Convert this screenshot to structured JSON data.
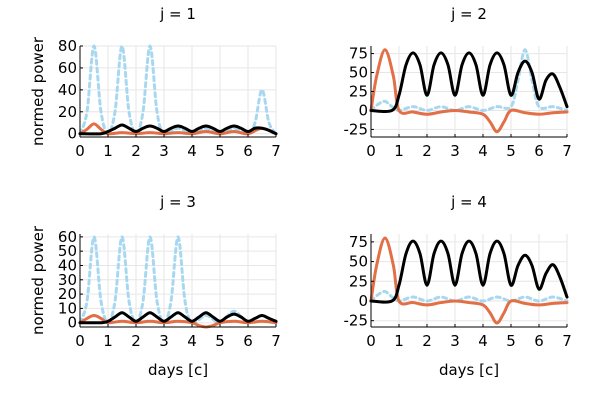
{
  "colors": {
    "dotted": "#a8d8f0",
    "orange": "#e26f46",
    "black": "#000000"
  },
  "chart_data": [
    {
      "type": "line",
      "title": "j = 1",
      "xlabel": "",
      "ylabel": "normed power",
      "xlim": [
        0,
        7
      ],
      "ylim": [
        -3,
        80
      ],
      "xticks": [
        0,
        1,
        2,
        3,
        4,
        5,
        6,
        7
      ],
      "yticks": [
        0,
        20,
        40,
        60,
        80
      ],
      "series": [
        {
          "name": "dotted",
          "style": "dotted",
          "x": [
            0,
            0.25,
            0.5,
            0.75,
            1,
            1.25,
            1.5,
            1.75,
            2,
            2.25,
            2.5,
            2.75,
            3,
            3.5,
            4,
            4.5,
            5,
            5.5,
            6,
            6.25,
            6.5,
            6.75,
            7
          ],
          "y": [
            0,
            20,
            80,
            20,
            0,
            20,
            80,
            20,
            0,
            20,
            80,
            20,
            0,
            5,
            0,
            5,
            0,
            5,
            0,
            10,
            40,
            10,
            0
          ]
        },
        {
          "name": "orange",
          "style": "solid",
          "x": [
            0,
            0.25,
            0.5,
            0.75,
            1,
            1.5,
            2,
            2.5,
            3,
            3.5,
            4,
            4.5,
            5,
            5.5,
            6,
            6.5,
            7
          ],
          "y": [
            0,
            4,
            9,
            4,
            0,
            1,
            0,
            1,
            0,
            1,
            0,
            2,
            0,
            2,
            0,
            5,
            0
          ]
        },
        {
          "name": "black",
          "style": "solid",
          "x": [
            0,
            0.75,
            1,
            1.25,
            1.5,
            1.75,
            2,
            2.25,
            2.5,
            2.75,
            3,
            3.25,
            3.5,
            3.75,
            4,
            4.25,
            4.5,
            4.75,
            5,
            5.25,
            5.5,
            5.75,
            6,
            6.25,
            6.5,
            6.75,
            7
          ],
          "y": [
            0,
            0,
            2,
            5,
            8,
            5,
            2,
            5,
            7,
            5,
            2,
            5,
            7,
            5,
            2,
            5,
            7,
            5,
            2,
            5,
            7,
            5,
            2,
            5,
            5,
            3,
            0
          ]
        }
      ]
    },
    {
      "type": "line",
      "title": "j = 2",
      "xlabel": "",
      "ylabel": "",
      "xlim": [
        0,
        7
      ],
      "ylim": [
        -35,
        85
      ],
      "xticks": [
        0,
        1,
        2,
        3,
        4,
        5,
        6,
        7
      ],
      "yticks": [
        -25,
        0,
        25,
        50,
        75
      ],
      "series": [
        {
          "name": "dotted",
          "style": "dotted",
          "x": [
            0,
            0.25,
            0.5,
            0.75,
            1,
            1.5,
            2,
            2.5,
            3,
            3.5,
            4,
            4.5,
            5,
            5.25,
            5.5,
            5.75,
            6,
            6.5,
            7
          ],
          "y": [
            0,
            8,
            12,
            5,
            0,
            5,
            0,
            5,
            0,
            5,
            0,
            5,
            5,
            40,
            80,
            40,
            5,
            5,
            0
          ]
        },
        {
          "name": "orange",
          "style": "solid",
          "x": [
            0,
            0.2,
            0.5,
            0.8,
            1,
            1.5,
            2,
            2.5,
            3,
            3.5,
            4,
            4.25,
            4.5,
            4.75,
            5,
            5.5,
            6,
            6.5,
            7
          ],
          "y": [
            0,
            45,
            80,
            45,
            0,
            -2,
            -5,
            -2,
            0,
            -2,
            -5,
            -15,
            -28,
            -15,
            0,
            -3,
            -5,
            -3,
            -2
          ]
        },
        {
          "name": "black",
          "style": "solid",
          "x": [
            0,
            0.75,
            1,
            1.25,
            1.5,
            1.75,
            2,
            2.25,
            2.5,
            2.75,
            3,
            3.25,
            3.5,
            3.75,
            4,
            4.25,
            4.5,
            4.75,
            5,
            5.25,
            5.5,
            5.75,
            6,
            6.25,
            6.5,
            6.75,
            7
          ],
          "y": [
            0,
            0,
            20,
            60,
            76,
            60,
            20,
            60,
            76,
            60,
            20,
            60,
            76,
            60,
            20,
            60,
            76,
            60,
            20,
            50,
            65,
            50,
            15,
            40,
            48,
            30,
            5
          ]
        }
      ]
    },
    {
      "type": "line",
      "title": "j = 3",
      "xlabel": "days [c]",
      "ylabel": "normed power",
      "xlim": [
        0,
        7
      ],
      "ylim": [
        -3,
        62
      ],
      "xticks": [
        0,
        1,
        2,
        3,
        4,
        5,
        6,
        7
      ],
      "yticks": [
        0,
        10,
        20,
        30,
        40,
        50,
        60
      ],
      "series": [
        {
          "name": "dotted",
          "style": "dotted",
          "x": [
            0,
            0.25,
            0.5,
            0.75,
            1,
            1.25,
            1.5,
            1.75,
            2,
            2.25,
            2.5,
            2.75,
            3,
            3.25,
            3.5,
            3.75,
            4,
            4.5,
            5,
            5.5,
            6,
            6.5,
            7
          ],
          "y": [
            0,
            15,
            60,
            15,
            0,
            15,
            60,
            15,
            0,
            15,
            60,
            15,
            0,
            15,
            60,
            15,
            0,
            5,
            0,
            8,
            0,
            5,
            0
          ]
        },
        {
          "name": "orange",
          "style": "solid",
          "x": [
            0,
            0.25,
            0.5,
            0.75,
            1,
            1.5,
            2,
            2.5,
            3,
            3.5,
            4,
            4.25,
            4.5,
            4.75,
            5,
            5.5,
            6,
            6.5,
            7
          ],
          "y": [
            0,
            3,
            5,
            3,
            0,
            1,
            0,
            1,
            0,
            1,
            0,
            -2,
            -3,
            -2,
            0,
            1,
            0,
            1,
            0
          ]
        },
        {
          "name": "black",
          "style": "solid",
          "x": [
            0,
            0.75,
            1,
            1.25,
            1.5,
            1.75,
            2,
            2.25,
            2.5,
            2.75,
            3,
            3.25,
            3.5,
            3.75,
            4,
            4.25,
            4.5,
            4.75,
            5,
            5.25,
            5.5,
            5.75,
            6,
            6.25,
            6.5,
            6.75,
            7
          ],
          "y": [
            0,
            0,
            1,
            4,
            7,
            4,
            1,
            4,
            7,
            4,
            1,
            4,
            7,
            4,
            1,
            4,
            7,
            4,
            1,
            4,
            6,
            4,
            1,
            3,
            5,
            3,
            1
          ]
        }
      ]
    },
    {
      "type": "line",
      "title": "j = 4",
      "xlabel": "days [c]",
      "ylabel": "",
      "xlim": [
        0,
        7
      ],
      "ylim": [
        -33,
        85
      ],
      "xticks": [
        0,
        1,
        2,
        3,
        4,
        5,
        6,
        7
      ],
      "yticks": [
        -25,
        0,
        25,
        50,
        75
      ],
      "series": [
        {
          "name": "dotted",
          "style": "dotted",
          "x": [
            0,
            0.25,
            0.5,
            0.75,
            1,
            1.5,
            2,
            2.5,
            3,
            3.5,
            4,
            4.5,
            5,
            5.5,
            6,
            6.5,
            7
          ],
          "y": [
            0,
            8,
            12,
            5,
            0,
            5,
            0,
            5,
            0,
            5,
            0,
            5,
            0,
            5,
            0,
            5,
            0
          ]
        },
        {
          "name": "orange",
          "style": "solid",
          "x": [
            0,
            0.2,
            0.5,
            0.8,
            1,
            1.5,
            2,
            2.5,
            3,
            3.5,
            4,
            4.25,
            4.5,
            4.75,
            5,
            5.5,
            6,
            6.5,
            7
          ],
          "y": [
            0,
            45,
            80,
            45,
            0,
            -2,
            -5,
            -2,
            0,
            -2,
            -5,
            -15,
            -28,
            -15,
            0,
            -3,
            -5,
            -3,
            -2
          ]
        },
        {
          "name": "black",
          "style": "solid",
          "x": [
            0,
            0.75,
            1,
            1.25,
            1.5,
            1.75,
            2,
            2.25,
            2.5,
            2.75,
            3,
            3.25,
            3.5,
            3.75,
            4,
            4.25,
            4.5,
            4.75,
            5,
            5.25,
            5.5,
            5.75,
            6,
            6.25,
            6.5,
            6.75,
            7
          ],
          "y": [
            0,
            0,
            20,
            60,
            76,
            60,
            20,
            60,
            76,
            60,
            20,
            60,
            76,
            60,
            20,
            60,
            76,
            60,
            20,
            45,
            58,
            45,
            15,
            35,
            46,
            30,
            5
          ]
        }
      ]
    }
  ]
}
